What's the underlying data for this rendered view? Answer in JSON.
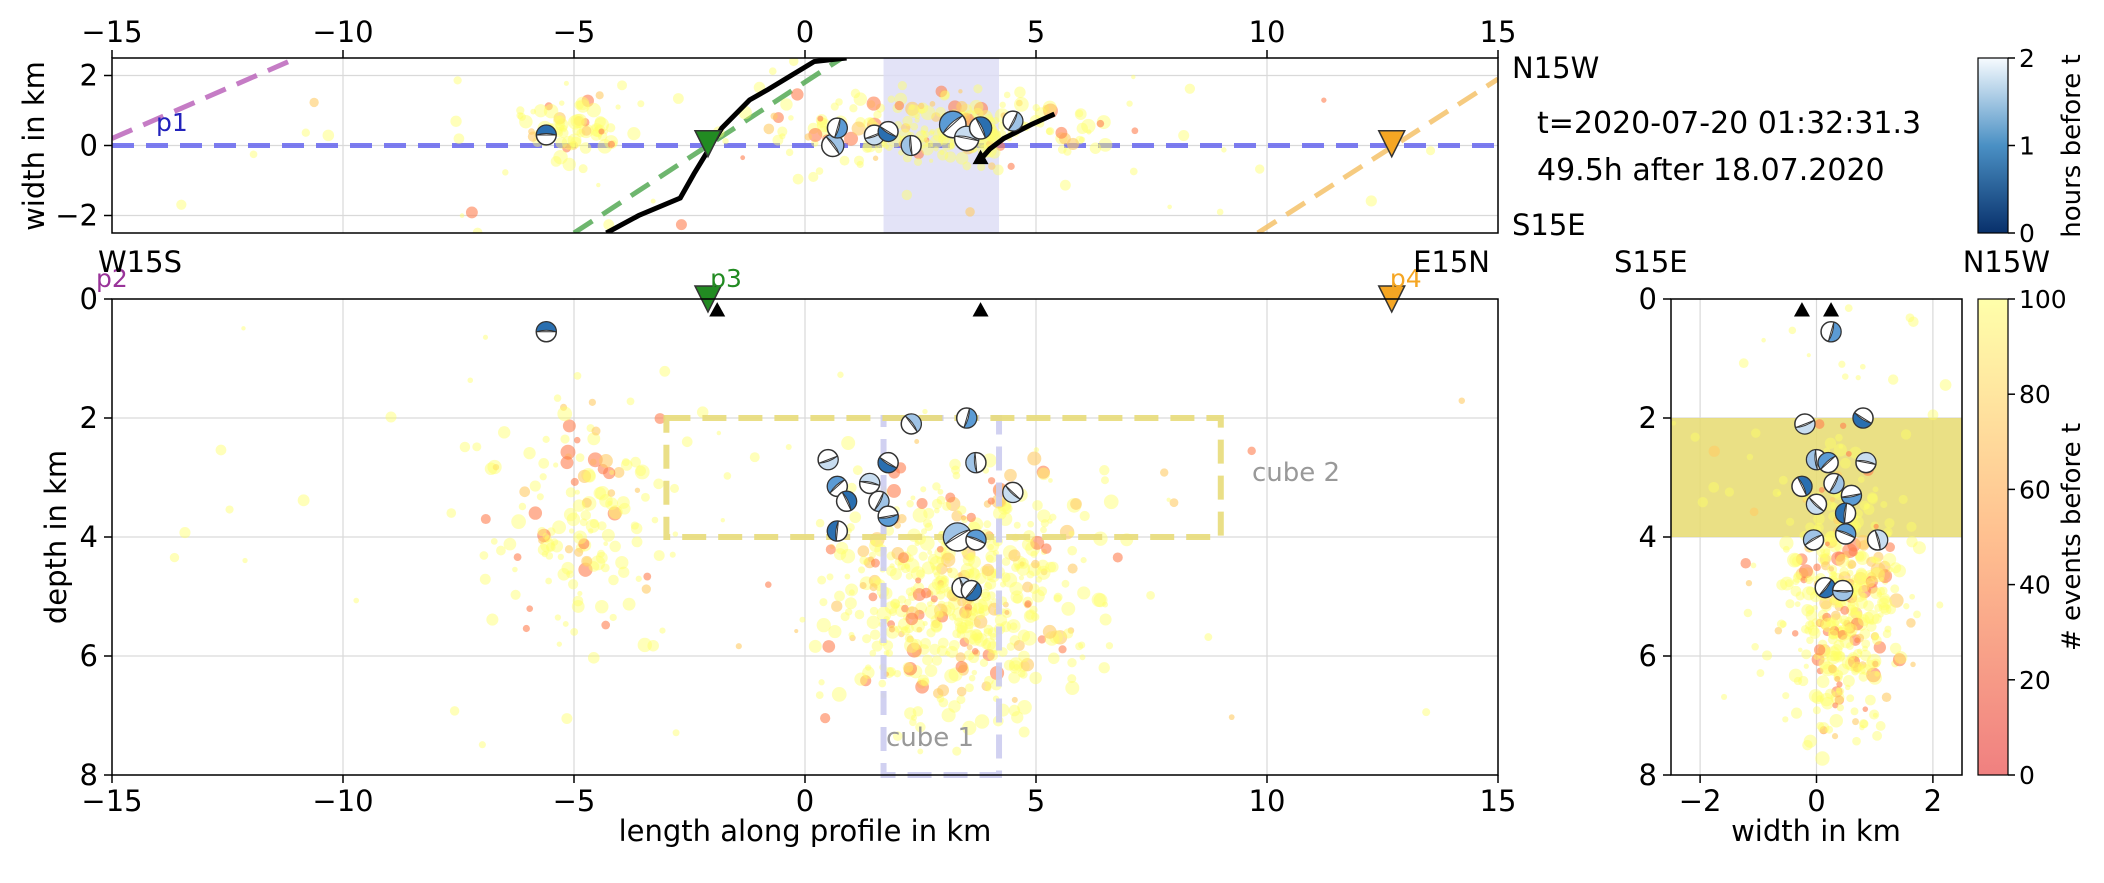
{
  "colors": {
    "seismicity_light": "#ffff66",
    "seismicity_dark": "#ff7f50",
    "profile_p1": "#6666ee",
    "profile_p2": "#bb66bb",
    "profile_p3": "#55aa55",
    "profile_p4": "#f5c26b",
    "station_p3": "#228b22",
    "station_p4": "#f5a623",
    "cube1": "#ccccf0",
    "cube2": "#e8dc7a",
    "mechanism_compressional": "#2a6fb0",
    "fault_trace": "#000000"
  },
  "chart_data": [
    {
      "id": "map_view",
      "type": "scatter",
      "xlabel": "",
      "ylabel": "width in km",
      "xlim": [
        -15,
        15
      ],
      "ylim": [
        -2.5,
        2.5
      ],
      "xticks": [
        -15,
        -10,
        -5,
        0,
        5,
        10,
        15
      ],
      "yticks": [
        -2,
        0,
        2
      ],
      "grid": true,
      "side_labels": {
        "top": "N15W",
        "bottom": "S15E"
      },
      "annotations": {
        "time": "t=2020-07-20 01:32:31.3",
        "elapsed": "49.5h after 18.07.2020",
        "profile_label": "p1"
      },
      "cube1_x": [
        1.7,
        4.2
      ],
      "profile_lines": [
        {
          "name": "p1",
          "x": [
            -15,
            15
          ],
          "y": [
            0,
            0
          ]
        },
        {
          "name": "p2",
          "x": [
            -15,
            -11
          ],
          "y": [
            0.2,
            2.5
          ]
        },
        {
          "name": "p3",
          "x": [
            -5,
            0.8
          ],
          "y": [
            -2.5,
            2.5
          ]
        },
        {
          "name": "p4",
          "x": [
            9.8,
            15
          ],
          "y": [
            -2.5,
            1.9
          ]
        }
      ],
      "fault_trace_1": {
        "x": [
          -4.3,
          -3.6,
          -2.7,
          -2.4,
          -1.8,
          -1.2,
          -0.8,
          -0.3,
          0.2,
          0.9
        ],
        "y": [
          -2.5,
          -2.0,
          -1.5,
          -0.8,
          0.5,
          1.3,
          1.6,
          2.0,
          2.4,
          2.5
        ]
      },
      "fault_trace_2": {
        "x": [
          3.8,
          4.0,
          4.3,
          4.9,
          5.4
        ],
        "y": [
          -0.4,
          -0.1,
          0.2,
          0.6,
          0.9
        ]
      },
      "stations": [
        {
          "name": "p3",
          "x": -2.1,
          "y": 0.05,
          "color": "#228b22"
        },
        {
          "name": "p4",
          "x": 12.7,
          "y": 0.05,
          "color": "#f5a623"
        }
      ],
      "mechanisms": [
        {
          "x": -5.6,
          "y": 0.3,
          "r": 0.9
        },
        {
          "x": 0.6,
          "y": 0.0,
          "r": 1.0
        },
        {
          "x": 0.7,
          "y": 0.5,
          "r": 0.9
        },
        {
          "x": 1.5,
          "y": 0.3,
          "r": 0.9
        },
        {
          "x": 1.8,
          "y": 0.4,
          "r": 0.9
        },
        {
          "x": 2.3,
          "y": 0.0,
          "r": 0.9
        },
        {
          "x": 3.2,
          "y": 0.6,
          "r": 1.2
        },
        {
          "x": 3.5,
          "y": 0.2,
          "r": 1.1
        },
        {
          "x": 3.8,
          "y": 0.5,
          "r": 1.0
        },
        {
          "x": 4.5,
          "y": 0.7,
          "r": 0.9
        }
      ]
    },
    {
      "id": "depth_section",
      "type": "scatter",
      "xlabel": "length along profile in km",
      "ylabel": "depth in km",
      "xlim": [
        -15,
        15
      ],
      "ylim": [
        8,
        0
      ],
      "xticks": [
        -15,
        -10,
        -5,
        0,
        5,
        10,
        15
      ],
      "yticks": [
        0,
        2,
        4,
        6,
        8
      ],
      "grid": true,
      "side_labels": {
        "left": "W15S",
        "right": "E15N"
      },
      "profile_markers": [
        {
          "name": "p2",
          "x": -15,
          "color": "#993399"
        },
        {
          "name": "p3",
          "x": -2.1,
          "color": "#228b22"
        },
        {
          "name": "p4",
          "x": 12.7,
          "color": "#f5a623"
        }
      ],
      "cubes": [
        {
          "name": "cube 1",
          "x": [
            1.7,
            4.2
          ],
          "depth": [
            2.0,
            8.0
          ],
          "color": "#ccccf0"
        },
        {
          "name": "cube 2",
          "x": [
            -3.0,
            9.0
          ],
          "depth": [
            2.0,
            4.0
          ],
          "color": "#e8dc7a"
        }
      ],
      "stations": [
        {
          "name": "p3",
          "x": -2.1,
          "depth": -0.1,
          "color": "#228b22"
        },
        {
          "name": "p4",
          "x": 12.7,
          "depth": -0.1,
          "color": "#f5a623"
        }
      ],
      "station_triangles": [
        {
          "x": -1.9,
          "depth": 0.12
        },
        {
          "x": 3.8,
          "depth": 0.12
        }
      ],
      "mechanisms": [
        {
          "x": -5.6,
          "depth": 0.55
        },
        {
          "x": 2.3,
          "depth": 2.1
        },
        {
          "x": 3.5,
          "depth": 2.0
        },
        {
          "x": 0.5,
          "depth": 2.7
        },
        {
          "x": 1.8,
          "depth": 2.75
        },
        {
          "x": 3.7,
          "depth": 2.75
        },
        {
          "x": 0.7,
          "depth": 3.15
        },
        {
          "x": 1.4,
          "depth": 3.1
        },
        {
          "x": 0.9,
          "depth": 3.4
        },
        {
          "x": 1.6,
          "depth": 3.4
        },
        {
          "x": 1.8,
          "depth": 3.65
        },
        {
          "x": 4.5,
          "depth": 3.25
        },
        {
          "x": 0.7,
          "depth": 3.9
        },
        {
          "x": 3.3,
          "depth": 4.0
        },
        {
          "x": 3.7,
          "depth": 4.05
        },
        {
          "x": 3.4,
          "depth": 4.85
        },
        {
          "x": 3.6,
          "depth": 4.9
        }
      ],
      "cube_labels": [
        "cube 1",
        "cube 2"
      ]
    },
    {
      "id": "cross_section",
      "type": "scatter",
      "xlabel": "width in km",
      "ylabel": "",
      "xlim": [
        -2.5,
        2.5
      ],
      "ylim": [
        8,
        0
      ],
      "xticks": [
        -2,
        0,
        2
      ],
      "yticks": [
        0,
        2,
        4,
        6,
        8
      ],
      "grid": true,
      "side_labels": {
        "left": "S15E",
        "right": "N15W"
      },
      "cube_band_depth": [
        2,
        4
      ],
      "station_triangles": [
        {
          "x": -0.25,
          "depth": 0.12
        },
        {
          "x": 0.25,
          "depth": 0.12
        }
      ],
      "mechanisms": [
        {
          "x": 0.25,
          "depth": 0.55
        },
        {
          "x": -0.2,
          "depth": 2.1
        },
        {
          "x": 0.8,
          "depth": 2.0
        },
        {
          "x": 0.0,
          "depth": 2.7
        },
        {
          "x": 0.2,
          "depth": 2.75
        },
        {
          "x": 0.85,
          "depth": 2.75
        },
        {
          "x": -0.25,
          "depth": 3.15
        },
        {
          "x": 0.3,
          "depth": 3.1
        },
        {
          "x": 0.6,
          "depth": 3.3
        },
        {
          "x": 0.0,
          "depth": 3.45
        },
        {
          "x": 0.5,
          "depth": 3.6
        },
        {
          "x": -0.05,
          "depth": 4.05
        },
        {
          "x": 0.5,
          "depth": 3.95
        },
        {
          "x": 1.05,
          "depth": 4.05
        },
        {
          "x": 0.15,
          "depth": 4.85
        },
        {
          "x": 0.45,
          "depth": 4.9
        }
      ]
    },
    {
      "id": "colorbar_time",
      "type": "heatmap",
      "label": "hours before t",
      "ticks": [
        0,
        1,
        2
      ],
      "range": [
        0,
        2
      ],
      "colors": [
        "#08306b",
        "#f7fbff"
      ]
    },
    {
      "id": "colorbar_events",
      "type": "heatmap",
      "label": "# events before t",
      "ticks": [
        0,
        20,
        40,
        60,
        80,
        100
      ],
      "range": [
        0,
        100
      ],
      "colors": [
        "#f28080",
        "#ffffaa"
      ]
    }
  ]
}
